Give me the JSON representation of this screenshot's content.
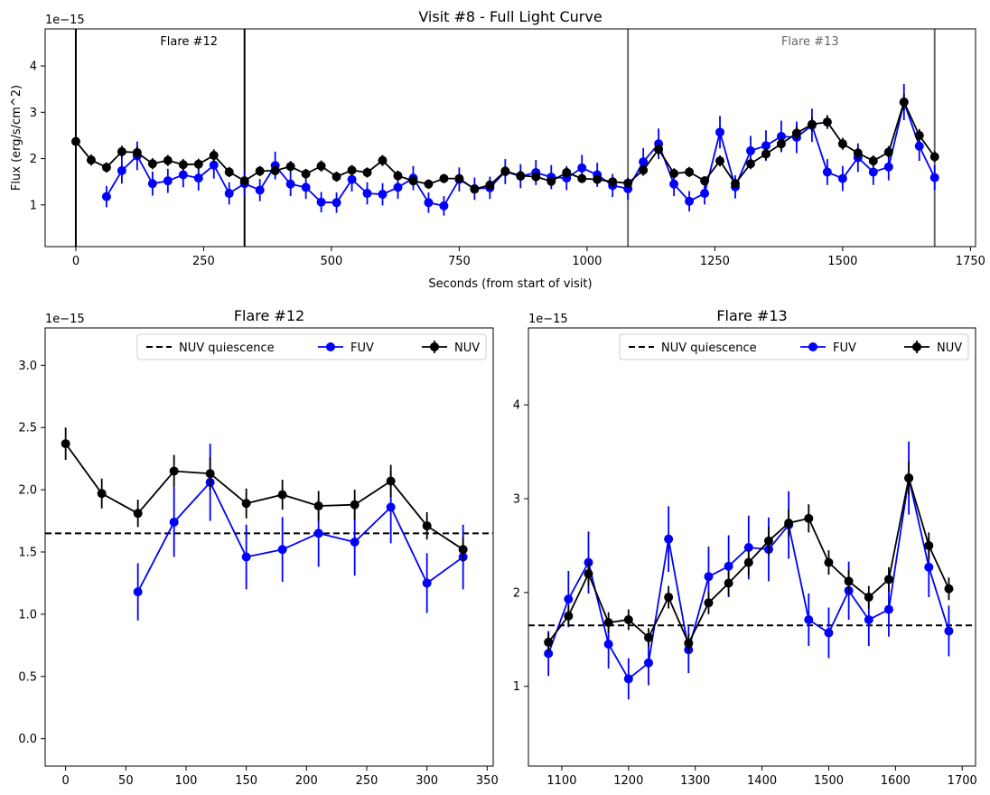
{
  "chart_data": [
    {
      "type": "line",
      "title": "Visit #8 - Full Light Curve",
      "xlabel": "Seconds (from start of visit)",
      "ylabel": "Flux (erg/s/cm^2)",
      "y_offset_label": "1e−15",
      "xlim": [
        -60,
        1760
      ],
      "ylim": [
        0.1,
        4.8
      ],
      "xticks": [
        0,
        250,
        500,
        750,
        1000,
        1250,
        1500,
        1750
      ],
      "yticks": [
        1,
        2,
        3,
        4
      ],
      "grid": false,
      "vlines": [
        {
          "x": 0,
          "color": "#000000"
        },
        {
          "x": 330,
          "color": "#000000"
        },
        {
          "x": 1080,
          "color": "#666666"
        },
        {
          "x": 1680,
          "color": "#666666"
        }
      ],
      "annotations": [
        {
          "text": "Flare #12",
          "x": 165,
          "y": 4.55,
          "color": "#000000"
        },
        {
          "text": "Flare #13",
          "x": 1380,
          "y": 4.55,
          "color": "#666666"
        }
      ],
      "series": [
        {
          "color": "#0000ff",
          "x": [
            60,
            90,
            120,
            150,
            180,
            210,
            240,
            270,
            300,
            330,
            360,
            390,
            420,
            450,
            480,
            510,
            540,
            570,
            600,
            630,
            660,
            690,
            720,
            750,
            780,
            810,
            840,
            870,
            900,
            930,
            960,
            990,
            1020,
            1050,
            1080,
            1110,
            1140,
            1170,
            1200,
            1230,
            1260,
            1290,
            1320,
            1350,
            1380,
            1410,
            1440,
            1470,
            1500,
            1530,
            1560,
            1590,
            1620,
            1650,
            1680
          ],
          "y": [
            1.18,
            1.74,
            2.06,
            1.46,
            1.52,
            1.65,
            1.58,
            1.86,
            1.25,
            1.46,
            1.32,
            1.85,
            1.45,
            1.38,
            1.06,
            1.05,
            1.55,
            1.25,
            1.23,
            1.38,
            1.58,
            1.05,
            0.98,
            1.55,
            1.35,
            1.37,
            1.72,
            1.62,
            1.7,
            1.6,
            1.58,
            1.8,
            1.65,
            1.42,
            1.35,
            1.93,
            2.32,
            1.45,
            1.08,
            1.25,
            2.57,
            1.39,
            2.17,
            2.28,
            2.48,
            2.46,
            2.72,
            1.71,
            1.57,
            2.02,
            1.71,
            1.82,
            3.22,
            2.27,
            1.59
          ],
          "err": [
            0.23,
            0.28,
            0.31,
            0.26,
            0.26,
            0.27,
            0.27,
            0.29,
            0.24,
            0.26,
            0.24,
            0.3,
            0.26,
            0.25,
            0.22,
            0.22,
            0.26,
            0.24,
            0.24,
            0.25,
            0.26,
            0.22,
            0.21,
            0.26,
            0.24,
            0.24,
            0.27,
            0.26,
            0.27,
            0.26,
            0.26,
            0.28,
            0.26,
            0.25,
            0.24,
            0.3,
            0.33,
            0.26,
            0.22,
            0.24,
            0.35,
            0.25,
            0.32,
            0.33,
            0.34,
            0.34,
            0.36,
            0.28,
            0.27,
            0.31,
            0.28,
            0.29,
            0.39,
            0.32,
            0.27
          ]
        },
        {
          "color": "#000000",
          "x": [
            0,
            30,
            60,
            90,
            120,
            150,
            180,
            210,
            240,
            270,
            300,
            330,
            360,
            390,
            420,
            450,
            480,
            510,
            540,
            570,
            600,
            630,
            660,
            690,
            720,
            750,
            780,
            810,
            840,
            870,
            900,
            930,
            960,
            990,
            1020,
            1050,
            1080,
            1110,
            1140,
            1170,
            1200,
            1230,
            1260,
            1290,
            1320,
            1350,
            1380,
            1410,
            1440,
            1470,
            1500,
            1530,
            1560,
            1590,
            1620,
            1650,
            1680
          ],
          "y": [
            2.37,
            1.97,
            1.81,
            2.15,
            2.13,
            1.89,
            1.96,
            1.87,
            1.88,
            2.07,
            1.71,
            1.52,
            1.73,
            1.74,
            1.83,
            1.67,
            1.84,
            1.61,
            1.75,
            1.7,
            1.96,
            1.63,
            1.52,
            1.45,
            1.57,
            1.57,
            1.34,
            1.43,
            1.73,
            1.63,
            1.61,
            1.51,
            1.7,
            1.57,
            1.55,
            1.5,
            1.47,
            1.75,
            2.2,
            1.68,
            1.71,
            1.52,
            1.95,
            1.46,
            1.89,
            2.1,
            2.32,
            2.55,
            2.74,
            2.79,
            2.32,
            2.12,
            1.95,
            2.14,
            3.22,
            2.5,
            2.04
          ],
          "err": [
            0.13,
            0.12,
            0.11,
            0.13,
            0.13,
            0.12,
            0.12,
            0.12,
            0.12,
            0.13,
            0.11,
            0.1,
            0.11,
            0.11,
            0.12,
            0.11,
            0.12,
            0.11,
            0.11,
            0.11,
            0.12,
            0.11,
            0.1,
            0.1,
            0.1,
            0.1,
            0.09,
            0.1,
            0.11,
            0.11,
            0.11,
            0.1,
            0.11,
            0.1,
            0.1,
            0.1,
            0.1,
            0.11,
            0.13,
            0.11,
            0.11,
            0.1,
            0.12,
            0.1,
            0.12,
            0.13,
            0.14,
            0.15,
            0.15,
            0.15,
            0.13,
            0.12,
            0.12,
            0.13,
            0.18,
            0.14,
            0.12
          ]
        }
      ]
    },
    {
      "type": "line",
      "title": "Flare #12",
      "y_offset_label": "1e−15",
      "xlim": [
        -17,
        355
      ],
      "ylim": [
        -0.22,
        3.3
      ],
      "xticks": [
        0,
        50,
        100,
        150,
        200,
        250,
        300,
        350
      ],
      "yticks": [
        0.0,
        0.5,
        1.0,
        1.5,
        2.0,
        2.5,
        3.0
      ],
      "tick_labels_y": [
        "0.0",
        "0.5",
        "1.0",
        "1.5",
        "2.0",
        "2.5",
        "3.0"
      ],
      "grid": false,
      "legend_position": "top-right",
      "legend": [
        "NUV quiescence",
        "FUV",
        "NUV"
      ],
      "hline": {
        "y": 1.65,
        "color": "#000000",
        "style": "dashed"
      },
      "series": [
        {
          "name": "FUV",
          "color": "#0000ff",
          "x": [
            60,
            90,
            120,
            150,
            180,
            210,
            240,
            270,
            300,
            330
          ],
          "y": [
            1.18,
            1.74,
            2.06,
            1.46,
            1.52,
            1.65,
            1.58,
            1.86,
            1.25,
            1.46
          ],
          "err": [
            0.23,
            0.28,
            0.31,
            0.26,
            0.26,
            0.27,
            0.27,
            0.29,
            0.24,
            0.26
          ]
        },
        {
          "name": "NUV",
          "color": "#000000",
          "x": [
            0,
            30,
            60,
            90,
            120,
            150,
            180,
            210,
            240,
            270,
            300,
            330
          ],
          "y": [
            2.37,
            1.97,
            1.81,
            2.15,
            2.13,
            1.89,
            1.96,
            1.87,
            1.88,
            2.07,
            1.71,
            1.52
          ],
          "err": [
            0.13,
            0.12,
            0.11,
            0.13,
            0.13,
            0.12,
            0.12,
            0.12,
            0.12,
            0.13,
            0.11,
            0.1
          ]
        }
      ]
    },
    {
      "type": "line",
      "title": "Flare #13",
      "y_offset_label": "1e−15",
      "xlim": [
        1050,
        1720
      ],
      "ylim": [
        0.15,
        4.82
      ],
      "xticks": [
        1100,
        1200,
        1300,
        1400,
        1500,
        1600,
        1700
      ],
      "yticks": [
        1,
        2,
        3,
        4
      ],
      "grid": false,
      "legend_position": "top-right",
      "legend": [
        "NUV quiescence",
        "FUV",
        "NUV"
      ],
      "hline": {
        "y": 1.65,
        "color": "#000000",
        "style": "dashed"
      },
      "series": [
        {
          "name": "FUV",
          "color": "#0000ff",
          "x": [
            1080,
            1110,
            1140,
            1170,
            1200,
            1230,
            1260,
            1290,
            1320,
            1350,
            1380,
            1410,
            1440,
            1470,
            1500,
            1530,
            1560,
            1590,
            1620,
            1650,
            1680
          ],
          "y": [
            1.35,
            1.93,
            2.32,
            1.45,
            1.08,
            1.25,
            2.57,
            1.39,
            2.17,
            2.28,
            2.48,
            2.46,
            2.72,
            1.71,
            1.57,
            2.02,
            1.71,
            1.82,
            3.22,
            2.27,
            1.59
          ],
          "err": [
            0.24,
            0.3,
            0.33,
            0.26,
            0.22,
            0.24,
            0.35,
            0.25,
            0.32,
            0.33,
            0.34,
            0.34,
            0.36,
            0.28,
            0.27,
            0.31,
            0.28,
            0.29,
            0.39,
            0.32,
            0.27
          ]
        },
        {
          "name": "NUV",
          "color": "#000000",
          "x": [
            1080,
            1110,
            1140,
            1170,
            1200,
            1230,
            1260,
            1290,
            1320,
            1350,
            1380,
            1410,
            1440,
            1470,
            1500,
            1530,
            1560,
            1590,
            1620,
            1650,
            1680
          ],
          "y": [
            1.47,
            1.75,
            2.2,
            1.68,
            1.71,
            1.52,
            1.95,
            1.46,
            1.89,
            2.1,
            2.32,
            2.55,
            2.74,
            2.79,
            2.32,
            2.12,
            1.95,
            2.14,
            3.22,
            2.5,
            2.04
          ],
          "err": [
            0.1,
            0.11,
            0.13,
            0.11,
            0.11,
            0.1,
            0.12,
            0.1,
            0.12,
            0.13,
            0.14,
            0.15,
            0.15,
            0.15,
            0.13,
            0.12,
            0.12,
            0.13,
            0.18,
            0.14,
            0.12
          ]
        }
      ]
    }
  ]
}
